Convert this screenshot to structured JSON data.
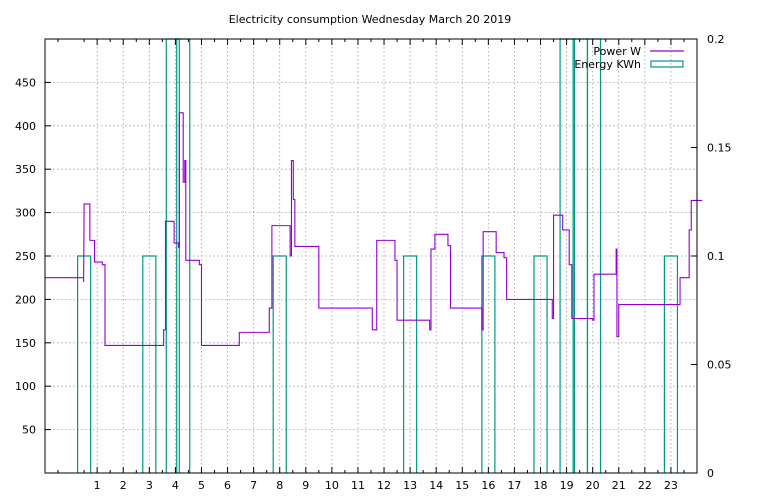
{
  "chart_data": {
    "type": "line",
    "title": "Electricity consumption Wednesday March 20 2019",
    "xlabel": "",
    "ylabel": "",
    "y2label": "",
    "xlim": [
      -1,
      24
    ],
    "ylim": [
      0,
      500
    ],
    "y2lim": [
      0,
      0.2
    ],
    "grid": true,
    "legend_position": "top-right",
    "x_ticks": [
      1,
      2,
      3,
      4,
      5,
      6,
      7,
      8,
      9,
      10,
      11,
      12,
      13,
      14,
      15,
      16,
      17,
      18,
      19,
      20,
      21,
      22,
      23
    ],
    "y_ticks": [
      50,
      100,
      150,
      200,
      250,
      300,
      350,
      400,
      450
    ],
    "y2_ticks": [
      0,
      0.05,
      0.1,
      0.15,
      0.2
    ],
    "y2_tick_labels": [
      "0",
      "0.05",
      "0.1",
      "0.15",
      "0.2"
    ],
    "series": [
      {
        "name": "Power W",
        "color": "#9400d3",
        "style": "step",
        "axis": "y1",
        "points": [
          [
            -1,
            225
          ],
          [
            0.48,
            225
          ],
          [
            0.48,
            220
          ],
          [
            0.5,
            310
          ],
          [
            0.72,
            310
          ],
          [
            0.72,
            268
          ],
          [
            0.9,
            268
          ],
          [
            0.9,
            243
          ],
          [
            1.2,
            243
          ],
          [
            1.2,
            240
          ],
          [
            1.3,
            240
          ],
          [
            1.3,
            147
          ],
          [
            3.55,
            147
          ],
          [
            3.55,
            165
          ],
          [
            3.62,
            165
          ],
          [
            3.62,
            290
          ],
          [
            3.95,
            290
          ],
          [
            3.95,
            265
          ],
          [
            4.12,
            265
          ],
          [
            4.12,
            260
          ],
          [
            4.15,
            260
          ],
          [
            4.15,
            415
          ],
          [
            4.3,
            415
          ],
          [
            4.3,
            335
          ],
          [
            4.36,
            335
          ],
          [
            4.36,
            360
          ],
          [
            4.4,
            360
          ],
          [
            4.4,
            245
          ],
          [
            4.92,
            245
          ],
          [
            4.92,
            240
          ],
          [
            5.0,
            240
          ],
          [
            5.0,
            147
          ],
          [
            6.45,
            147
          ],
          [
            6.45,
            162
          ],
          [
            7.6,
            162
          ],
          [
            7.6,
            190
          ],
          [
            7.7,
            190
          ],
          [
            7.7,
            285
          ],
          [
            8.4,
            285
          ],
          [
            8.4,
            250
          ],
          [
            8.45,
            250
          ],
          [
            8.45,
            360
          ],
          [
            8.52,
            360
          ],
          [
            8.52,
            315
          ],
          [
            8.58,
            315
          ],
          [
            8.58,
            261
          ],
          [
            9.5,
            261
          ],
          [
            9.5,
            190
          ],
          [
            11.55,
            190
          ],
          [
            11.55,
            165
          ],
          [
            11.72,
            165
          ],
          [
            11.72,
            268
          ],
          [
            12.42,
            268
          ],
          [
            12.42,
            245
          ],
          [
            12.5,
            245
          ],
          [
            12.5,
            176
          ],
          [
            13.75,
            176
          ],
          [
            13.75,
            165
          ],
          [
            13.8,
            165
          ],
          [
            13.8,
            258
          ],
          [
            13.95,
            258
          ],
          [
            13.95,
            275
          ],
          [
            14.45,
            275
          ],
          [
            14.45,
            262
          ],
          [
            14.55,
            262
          ],
          [
            14.55,
            190
          ],
          [
            15.75,
            190
          ],
          [
            15.75,
            165
          ],
          [
            15.8,
            165
          ],
          [
            15.8,
            278
          ],
          [
            16.3,
            278
          ],
          [
            16.3,
            254
          ],
          [
            16.6,
            254
          ],
          [
            16.6,
            248
          ],
          [
            16.7,
            248
          ],
          [
            16.7,
            200
          ],
          [
            18.45,
            200
          ],
          [
            18.45,
            178
          ],
          [
            18.5,
            178
          ],
          [
            18.5,
            297
          ],
          [
            18.85,
            297
          ],
          [
            18.85,
            280
          ],
          [
            19.1,
            280
          ],
          [
            19.1,
            240
          ],
          [
            19.2,
            240
          ],
          [
            19.2,
            178
          ],
          [
            20.0,
            178
          ],
          [
            20.0,
            176
          ],
          [
            20.05,
            176
          ],
          [
            20.05,
            229
          ],
          [
            20.9,
            229
          ],
          [
            20.9,
            258
          ],
          [
            20.93,
            258
          ],
          [
            20.93,
            157
          ],
          [
            21.0,
            157
          ],
          [
            21.0,
            194
          ],
          [
            23.35,
            194
          ],
          [
            23.35,
            225
          ],
          [
            23.7,
            225
          ],
          [
            23.7,
            280
          ],
          [
            23.78,
            280
          ],
          [
            23.78,
            314
          ],
          [
            24.2,
            314
          ]
        ]
      },
      {
        "name": "Energy KWh",
        "color": "#009a80",
        "style": "boxes",
        "axis": "y2",
        "box_width": 0.5,
        "x": [
          0.5,
          3,
          3.9,
          4.3,
          8,
          13,
          16,
          18,
          19,
          19.55,
          20.05,
          23
        ],
        "values": [
          0.1,
          0.1,
          0.2,
          0.2,
          0.1,
          0.1,
          0.1,
          0.1,
          0.2,
          0.2,
          0.2,
          0.1
        ]
      }
    ]
  }
}
